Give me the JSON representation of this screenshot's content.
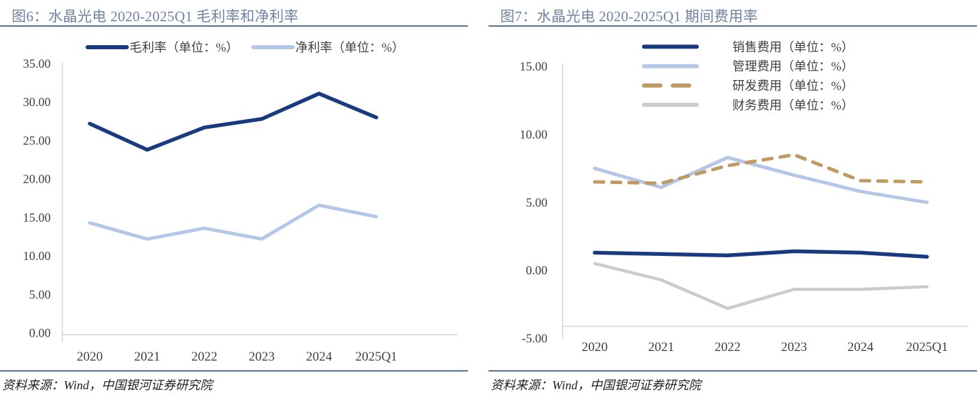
{
  "colors": {
    "title_text": "#6e82a2",
    "rule": "#4f72a0",
    "axis_line": "#d6d6d6",
    "tick_text": "#404040",
    "legend_text": "#404040",
    "source_text": "#1f1f1f",
    "navy": "#1a3a80",
    "light_blue": "#b4c7e7",
    "tan": "#bf9a63",
    "gray": "#cbcbcb"
  },
  "chart_data": [
    {
      "type": "line",
      "figure_label": "图6",
      "title": "图6：水晶光电 2020-2025Q1 毛利率和净利率",
      "categories": [
        "2020",
        "2021",
        "2022",
        "2023",
        "2024",
        "2025Q1"
      ],
      "series": [
        {
          "name": "毛利率（单位：%）",
          "color": "#1a3a80",
          "dashed": false,
          "values": [
            27.2,
            23.8,
            26.7,
            27.8,
            31.1,
            28.0
          ]
        },
        {
          "name": "净利率（单位：%）",
          "color": "#b4c7e7",
          "dashed": false,
          "values": [
            14.3,
            12.2,
            13.6,
            12.2,
            16.6,
            15.1
          ]
        }
      ],
      "ylim": [
        0,
        35
      ],
      "ystep": 5,
      "y_tick_labels": [
        "0.00",
        "5.00",
        "10.00",
        "15.00",
        "20.00",
        "25.00",
        "30.00",
        "35.00"
      ],
      "xlabel": "",
      "ylabel": "",
      "grid": false,
      "legend_position": "top-horizontal",
      "source": "资料来源：Wind，中国银河证券研究院"
    },
    {
      "type": "line",
      "figure_label": "图7",
      "title": "图7：水晶光电 2020-2025Q1 期间费用率",
      "categories": [
        "2020",
        "2021",
        "2022",
        "2023",
        "2024",
        "2025Q1"
      ],
      "series": [
        {
          "name": "销售费用（单位：%）",
          "color": "#1a3a80",
          "dashed": false,
          "values": [
            1.3,
            1.2,
            1.1,
            1.4,
            1.3,
            1.0
          ]
        },
        {
          "name": "管理费用（单位：%）",
          "color": "#b4c7e7",
          "dashed": false,
          "values": [
            7.5,
            6.1,
            8.3,
            7.0,
            5.8,
            5.0
          ]
        },
        {
          "name": "研发费用（单位：%）",
          "color": "#bf9a63",
          "dashed": true,
          "values": [
            6.5,
            6.4,
            7.7,
            8.5,
            6.6,
            6.5
          ]
        },
        {
          "name": "财务费用（单位：%）",
          "color": "#cbcbcb",
          "dashed": false,
          "values": [
            0.5,
            -0.7,
            -2.8,
            -1.4,
            -1.4,
            -1.2
          ]
        }
      ],
      "ylim": [
        -5,
        15
      ],
      "ystep": 5,
      "y_tick_labels": [
        "-5.00",
        "0.00",
        "5.00",
        "10.00",
        "15.00"
      ],
      "xlabel": "",
      "ylabel": "",
      "grid": false,
      "legend_position": "top-right-vertical",
      "source": "资料来源：Wind，中国银河证券研究院"
    }
  ]
}
